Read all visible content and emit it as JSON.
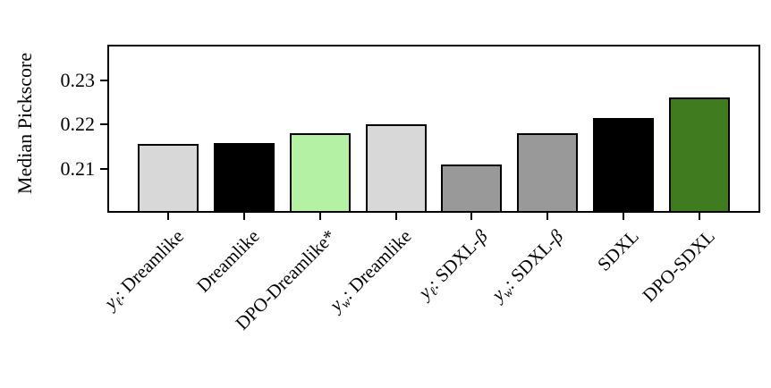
{
  "figure": {
    "background": "#ffffff"
  },
  "chart_data": {
    "type": "bar",
    "title": "",
    "xlabel": "",
    "ylabel": "Median Pickscore",
    "categories": [
      "yℓ: Dreamlike",
      "Dreamlike",
      "DPO-Dreamlike*",
      "yw: Dreamlike",
      "yℓ: SDXL-β",
      "yw: SDXL-β",
      "SDXL",
      "DPO-SDXL"
    ],
    "label_segments": [
      [
        {
          "t": "y",
          "i": true
        },
        {
          "t": "ℓ",
          "i": true,
          "s": true
        },
        {
          "t": ": Dreamlike"
        }
      ],
      [
        {
          "t": "Dreamlike"
        }
      ],
      [
        {
          "t": "DPO-Dreamlike*"
        }
      ],
      [
        {
          "t": "y",
          "i": true
        },
        {
          "t": "w",
          "i": true,
          "s": true
        },
        {
          "t": ": Dreamlike"
        }
      ],
      [
        {
          "t": "y",
          "i": true
        },
        {
          "t": "ℓ",
          "i": true,
          "s": true
        },
        {
          "t": ": SDXL-"
        },
        {
          "t": "β",
          "i": true
        }
      ],
      [
        {
          "t": "y",
          "i": true
        },
        {
          "t": "w",
          "i": true,
          "s": true
        },
        {
          "t": ": SDXL-"
        },
        {
          "t": "β",
          "i": true
        }
      ],
      [
        {
          "t": "SDXL"
        }
      ],
      [
        {
          "t": "DPO-SDXL"
        }
      ]
    ],
    "values": [
      0.2155,
      0.2158,
      0.218,
      0.22,
      0.211,
      0.218,
      0.2215,
      0.226
    ],
    "colors": [
      "#d8d8d8",
      "#000000",
      "#b5f1a5",
      "#d8d8d8",
      "#999999",
      "#999999",
      "#000000",
      "#3e7c1f"
    ],
    "bar_edge_color": "#000000",
    "bar_width": 0.8,
    "yticks": [
      0.21,
      0.22,
      0.23
    ],
    "ytick_labels": [
      "0.21",
      "0.22",
      "0.23"
    ],
    "ylim": [
      0.2,
      0.238
    ],
    "xlim": [
      -0.8,
      7.8
    ],
    "grid": false,
    "legend": null
  }
}
